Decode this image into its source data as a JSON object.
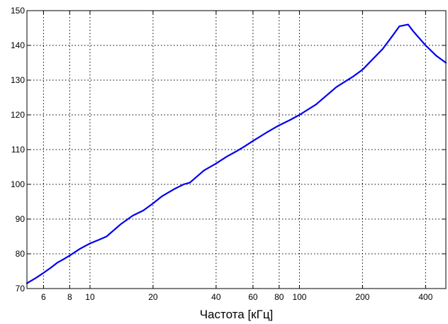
{
  "chart_data": {
    "type": "line",
    "title": "",
    "xlabel": "Частота [кГц]",
    "ylabel": "",
    "x_scale": "log",
    "xlim": [
      5,
      500
    ],
    "ylim": [
      70,
      150
    ],
    "x_ticks": [
      {
        "value": 6,
        "label": "6"
      },
      {
        "value": 8,
        "label": "8"
      },
      {
        "value": 10,
        "label": "10"
      },
      {
        "value": 20,
        "label": "20"
      },
      {
        "value": 40,
        "label": "40"
      },
      {
        "value": 60,
        "label": "60"
      },
      {
        "value": 80,
        "label": "80"
      },
      {
        "value": 100,
        "label": "100"
      },
      {
        "value": 200,
        "label": "200"
      },
      {
        "value": 400,
        "label": "400"
      }
    ],
    "y_ticks": [
      {
        "value": 70,
        "label": "70"
      },
      {
        "value": 80,
        "label": "80"
      },
      {
        "value": 90,
        "label": "90"
      },
      {
        "value": 100,
        "label": "100"
      },
      {
        "value": 110,
        "label": "110"
      },
      {
        "value": 120,
        "label": "120"
      },
      {
        "value": 130,
        "label": "130"
      },
      {
        "value": 140,
        "label": "140"
      },
      {
        "value": 150,
        "label": "150"
      }
    ],
    "grid": true,
    "grid_style": "dotted",
    "line_color": "#0000ee",
    "series": [
      {
        "x": [
          5,
          5.5,
          6,
          6.5,
          7,
          7.5,
          8,
          9,
          10,
          11,
          12,
          14,
          16,
          18,
          20,
          22,
          25,
          28,
          30,
          35,
          40,
          45,
          50,
          55,
          60,
          70,
          80,
          90,
          100,
          120,
          150,
          180,
          200,
          250,
          280,
          300,
          330,
          350,
          400,
          450,
          500
        ],
        "y": [
          71.5,
          73.0,
          74.5,
          76.0,
          77.5,
          78.5,
          79.5,
          81.5,
          83.0,
          84.0,
          85.0,
          88.5,
          91.0,
          92.5,
          94.5,
          96.5,
          98.5,
          100.0,
          100.5,
          104.0,
          106.0,
          108.0,
          109.5,
          111.0,
          112.5,
          115.0,
          117.0,
          118.5,
          120.0,
          123.0,
          128.0,
          131.0,
          133.0,
          139.0,
          143.0,
          145.5,
          146.0,
          144.0,
          140.0,
          137.0,
          135.0
        ]
      }
    ]
  }
}
